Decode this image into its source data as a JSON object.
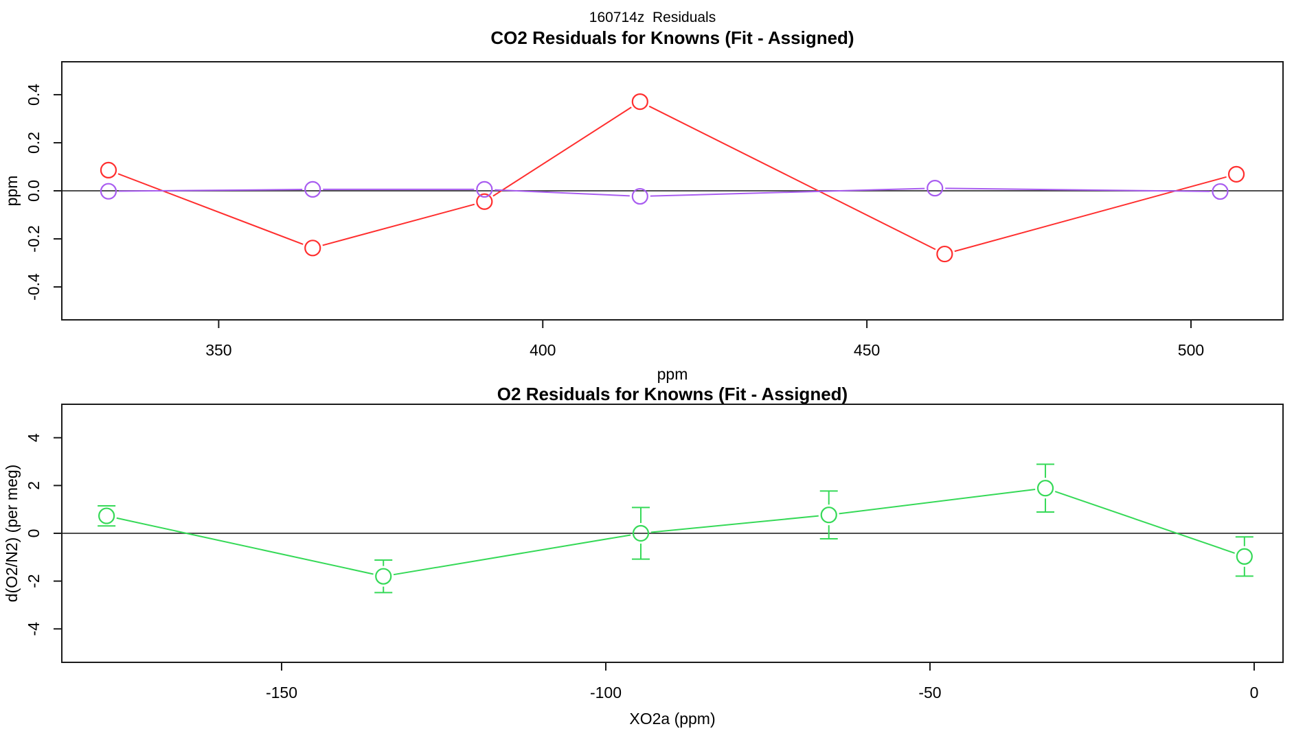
{
  "page": {
    "title": "160714z  Residuals"
  },
  "colors": {
    "red": "#ff2e2e",
    "purple": "#a85cf0",
    "green": "#35d957",
    "zero_line": "#4d4d4d",
    "frame": "#1a1a1a",
    "tick": "#1a1a1a"
  },
  "chart_data": [
    {
      "type": "line",
      "title": "CO2 Residuals for Knowns (Fit - Assigned)",
      "xlabel": "ppm",
      "ylabel": "ppm",
      "xlim": [
        325.8,
        514.2
      ],
      "ylim": [
        -0.537,
        0.537
      ],
      "xticks": [
        350,
        400,
        450,
        500
      ],
      "xtick_labels": [
        "350",
        "400",
        "450",
        "500"
      ],
      "yticks": [
        -0.4,
        -0.2,
        0.0,
        0.2,
        0.4
      ],
      "ytick_labels": [
        "-0.4",
        "-0.2",
        "0.0",
        "0.2",
        "0.4"
      ],
      "zero_line": 0,
      "grid": false,
      "legend": null,
      "series": [
        {
          "name": "co2-residual",
          "color_key": "red",
          "marker": "open-circle",
          "x": [
            333,
            364.5,
            391,
            415,
            462,
            507
          ],
          "y": [
            0.086,
            -0.238,
            -0.045,
            0.371,
            -0.263,
            0.069
          ]
        },
        {
          "name": "secondary-residual",
          "color_key": "purple",
          "marker": "open-circle",
          "x": [
            333,
            364.5,
            391,
            415,
            460.5,
            504.5
          ],
          "y": [
            -0.002,
            0.006,
            0.006,
            -0.023,
            0.011,
            -0.003
          ]
        }
      ]
    },
    {
      "type": "line",
      "title": "O2 Residuals for Knowns (Fit - Assigned)",
      "xlabel": "XO2a (ppm)",
      "ylabel": "d(O2/N2) (per meg)",
      "xlim": [
        -183.9,
        4.45
      ],
      "ylim": [
        -5.4,
        5.4
      ],
      "xticks": [
        -150,
        -100,
        -50,
        0
      ],
      "xtick_labels": [
        "-150",
        "-100",
        "-50",
        "0"
      ],
      "yticks": [
        -4,
        -2,
        0,
        2,
        4
      ],
      "ytick_labels": [
        "-4",
        "-2",
        "0",
        "2",
        "4"
      ],
      "zero_line": 0,
      "grid": false,
      "legend": null,
      "series": [
        {
          "name": "o2-residual",
          "color_key": "green",
          "marker": "open-circle",
          "x": [
            -177,
            -134.3,
            -94.6,
            -65.6,
            -32.2,
            -1.5
          ],
          "y": [
            0.73,
            -1.8,
            0.0,
            0.77,
            1.89,
            -0.97
          ],
          "yerr": [
            0.42,
            0.68,
            1.08,
            1.0,
            1.0,
            0.82
          ]
        }
      ]
    }
  ]
}
